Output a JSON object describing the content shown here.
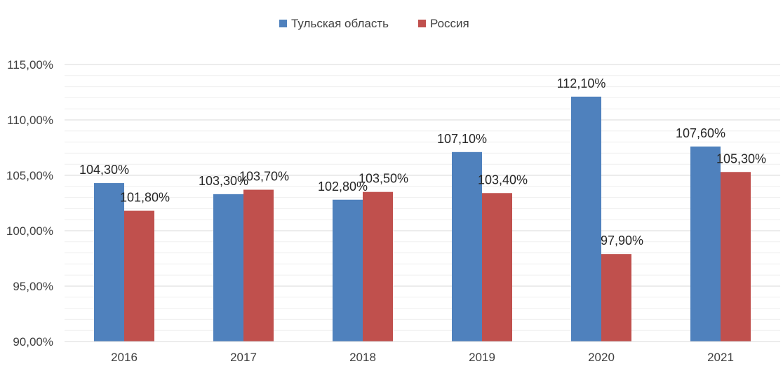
{
  "chart_data": {
    "type": "bar",
    "title": "",
    "xlabel": "",
    "ylabel": "",
    "categories": [
      "2016",
      "2017",
      "2018",
      "2019",
      "2020",
      "2021"
    ],
    "series": [
      {
        "name": "Тульская область",
        "color": "#4f81bd",
        "values": [
          104.3,
          103.3,
          102.8,
          107.1,
          112.1,
          107.6
        ],
        "labels": [
          "104,30%",
          "103,30%",
          "102,80%",
          "107,10%",
          "112,10%",
          "107,60%"
        ]
      },
      {
        "name": "Россия",
        "color": "#c0504d",
        "values": [
          101.8,
          103.7,
          103.5,
          103.4,
          97.9,
          105.3
        ],
        "labels": [
          "101,80%",
          "103,70%",
          "103,50%",
          "103,40%",
          "97,90%",
          "105,30%"
        ]
      }
    ],
    "ylim": [
      90,
      115
    ],
    "yticks": [
      90,
      95,
      100,
      105,
      110,
      115
    ],
    "ytick_labels": [
      "90,00%",
      "95,00%",
      "100,00%",
      "105,00%",
      "110,00%",
      "115,00%"
    ],
    "legend_position": "top-center",
    "grid": true,
    "grid_color": "#d9d9d9",
    "minor_grid_color": "#efefef"
  }
}
